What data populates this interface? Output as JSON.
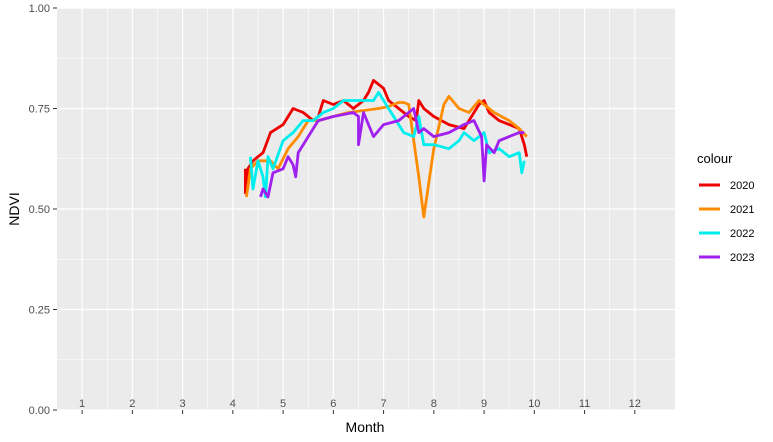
{
  "chart_data": {
    "type": "line",
    "xlabel": "Month",
    "ylabel": "NDVI",
    "xlim": [
      0.5,
      12.8
    ],
    "ylim": [
      0,
      1
    ],
    "x_ticks": [
      1,
      2,
      3,
      4,
      5,
      6,
      7,
      8,
      9,
      10,
      11,
      12
    ],
    "y_ticks": [
      0.0,
      0.25,
      0.5,
      0.75,
      1.0
    ],
    "y_tick_labels": [
      "0.00",
      "0.25",
      "0.50",
      "0.75",
      "1.00"
    ],
    "grid": true,
    "legend": {
      "title": "colour",
      "position": "right"
    },
    "series": [
      {
        "name": "2020",
        "color": "#ee0000",
        "x": [
          4.25,
          4.25,
          4.27,
          4.3,
          4.4,
          4.5,
          4.6,
          4.75,
          5.0,
          5.2,
          5.4,
          5.6,
          5.7,
          5.8,
          6.0,
          6.2,
          6.4,
          6.6,
          6.7,
          6.8,
          6.9,
          7.0,
          7.1,
          7.3,
          7.5,
          7.65,
          7.7,
          7.8,
          8.0,
          8.3,
          8.6,
          8.9,
          9.0,
          9.1,
          9.3,
          9.5,
          9.7,
          9.8,
          9.85
        ],
        "y": [
          0.6,
          0.54,
          0.55,
          0.6,
          0.62,
          0.63,
          0.64,
          0.69,
          0.71,
          0.75,
          0.74,
          0.72,
          0.73,
          0.77,
          0.76,
          0.77,
          0.75,
          0.77,
          0.79,
          0.82,
          0.81,
          0.8,
          0.77,
          0.75,
          0.73,
          0.72,
          0.77,
          0.75,
          0.73,
          0.71,
          0.7,
          0.76,
          0.77,
          0.74,
          0.72,
          0.71,
          0.7,
          0.66,
          0.63
        ]
      },
      {
        "name": "2021",
        "color": "#ff8c00",
        "x": [
          4.27,
          4.35,
          4.5,
          4.75,
          4.9,
          5.1,
          5.3,
          5.5,
          5.7,
          6.0,
          6.3,
          6.6,
          6.9,
          7.1,
          7.2,
          7.3,
          7.4,
          7.5,
          7.7,
          7.8,
          8.0,
          8.2,
          8.3,
          8.5,
          8.7,
          8.9,
          9.2,
          9.5,
          9.7,
          9.85
        ],
        "y": [
          0.53,
          0.6,
          0.62,
          0.62,
          0.6,
          0.65,
          0.68,
          0.72,
          0.72,
          0.73,
          0.74,
          0.745,
          0.75,
          0.755,
          0.76,
          0.765,
          0.765,
          0.76,
          0.58,
          0.48,
          0.65,
          0.76,
          0.78,
          0.75,
          0.74,
          0.77,
          0.74,
          0.72,
          0.7,
          0.68
        ]
      },
      {
        "name": "2022",
        "color": "#00eeee",
        "x": [
          4.35,
          4.4,
          4.5,
          4.6,
          4.65,
          4.7,
          4.8,
          5.0,
          5.2,
          5.4,
          5.6,
          5.8,
          6.0,
          6.2,
          6.4,
          6.6,
          6.7,
          6.8,
          6.9,
          7.0,
          7.2,
          7.4,
          7.6,
          7.7,
          7.8,
          8.0,
          8.3,
          8.5,
          8.6,
          8.8,
          9.0,
          9.1,
          9.3,
          9.5,
          9.7,
          9.75,
          9.8
        ],
        "y": [
          0.63,
          0.55,
          0.62,
          0.58,
          0.53,
          0.63,
          0.6,
          0.67,
          0.69,
          0.72,
          0.72,
          0.74,
          0.75,
          0.77,
          0.77,
          0.77,
          0.77,
          0.77,
          0.79,
          0.77,
          0.73,
          0.69,
          0.68,
          0.73,
          0.66,
          0.66,
          0.65,
          0.67,
          0.69,
          0.67,
          0.69,
          0.64,
          0.65,
          0.63,
          0.64,
          0.59,
          0.62
        ]
      },
      {
        "name": "2023",
        "color": "#a020f0",
        "x": [
          4.55,
          4.6,
          4.7,
          4.8,
          5.0,
          5.1,
          5.2,
          5.25,
          5.3,
          5.4,
          5.6,
          5.7,
          6.0,
          6.2,
          6.4,
          6.5,
          6.5,
          6.6,
          6.7,
          6.8,
          7.0,
          7.3,
          7.5,
          7.6,
          7.7,
          7.8,
          8.0,
          8.3,
          8.6,
          8.8,
          8.95,
          9.0,
          9.05,
          9.2,
          9.3,
          9.5,
          9.7,
          9.8
        ],
        "y": [
          0.53,
          0.55,
          0.53,
          0.59,
          0.6,
          0.63,
          0.61,
          0.58,
          0.64,
          0.66,
          0.7,
          0.72,
          0.73,
          0.735,
          0.74,
          0.73,
          0.66,
          0.74,
          0.71,
          0.68,
          0.71,
          0.72,
          0.74,
          0.75,
          0.69,
          0.7,
          0.68,
          0.69,
          0.71,
          0.72,
          0.68,
          0.57,
          0.66,
          0.64,
          0.67,
          0.68,
          0.69,
          0.69
        ]
      }
    ]
  }
}
